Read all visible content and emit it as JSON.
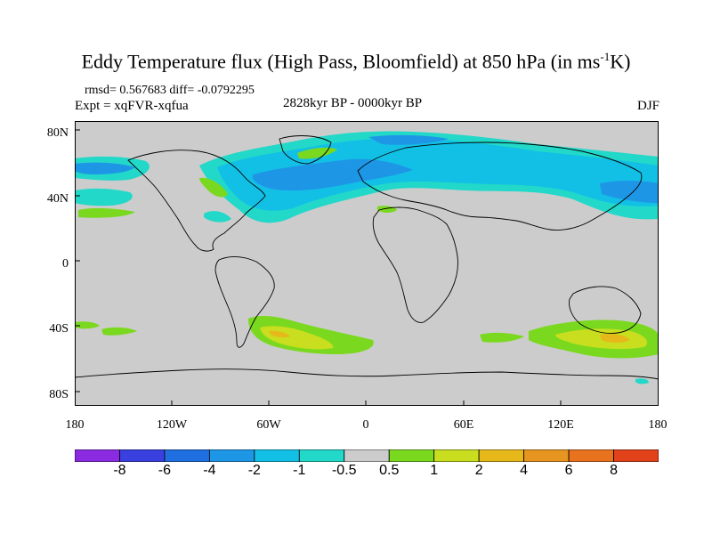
{
  "title": {
    "prefix": "Eddy Temperature flux (High Pass, Bloomfield) at 850 hPa (in ms",
    "sup": "-1",
    "suffix": "K)"
  },
  "stats": "rmsd= 0.567683 diff= -0.0792295",
  "expt": "Expt = xqFVR-xqfua",
  "period": "2828kyr BP - 0000kyr BP",
  "season": "DJF",
  "map": {
    "y_ticks": [
      "80N",
      "40N",
      "0",
      "40S",
      "80S"
    ],
    "x_ticks": [
      "180",
      "120W",
      "60W",
      "0",
      "60E",
      "120E",
      "180"
    ],
    "background": "#cccccc"
  },
  "colorbar": {
    "colors": [
      "#8a2be2",
      "#3a3fe0",
      "#1f6fe0",
      "#1e96e6",
      "#12c0e6",
      "#22d8c8",
      "#cccccc",
      "#7ad91e",
      "#c8de1f",
      "#e6b81a",
      "#e69520",
      "#e8721e",
      "#e2421a"
    ],
    "labels": [
      "-8",
      "-6",
      "-4",
      "-2",
      "-1",
      "-0.5",
      "0.5",
      "1",
      "2",
      "4",
      "6",
      "8"
    ]
  }
}
